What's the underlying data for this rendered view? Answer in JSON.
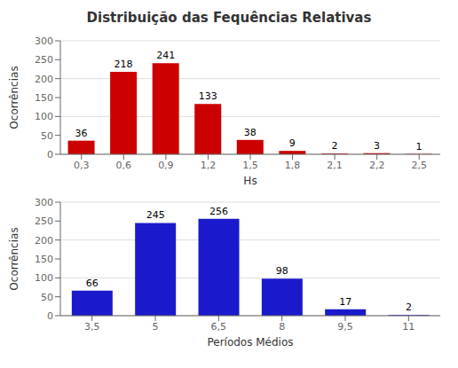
{
  "chart_data": [
    {
      "type": "bar",
      "title": "Distribuição das Fequências Relativas",
      "categories": [
        "0,3",
        "0,6",
        "0,9",
        "1,2",
        "1,5",
        "1,8",
        "2,1",
        "2,2",
        "2,5"
      ],
      "values": [
        36,
        218,
        241,
        133,
        38,
        9,
        2,
        3,
        1
      ],
      "x_label": "Hs",
      "y_label": "Ocorrências",
      "ylim": [
        0,
        300
      ],
      "yticks": [
        0,
        50,
        100,
        150,
        200,
        250,
        300
      ],
      "grid": true,
      "data_labels": true,
      "color": "#cc0000"
    },
    {
      "type": "bar",
      "categories": [
        "3,5",
        "5",
        "6,5",
        "8",
        "9,5",
        "11"
      ],
      "values": [
        66,
        245,
        256,
        98,
        17,
        2
      ],
      "x_label": "Períodos Médios",
      "y_label": "Ocorrências",
      "ylim": [
        0,
        300
      ],
      "yticks": [
        0,
        50,
        100,
        150,
        200,
        250,
        300
      ],
      "grid": true,
      "data_labels": true,
      "color": "#1a1acc"
    }
  ]
}
